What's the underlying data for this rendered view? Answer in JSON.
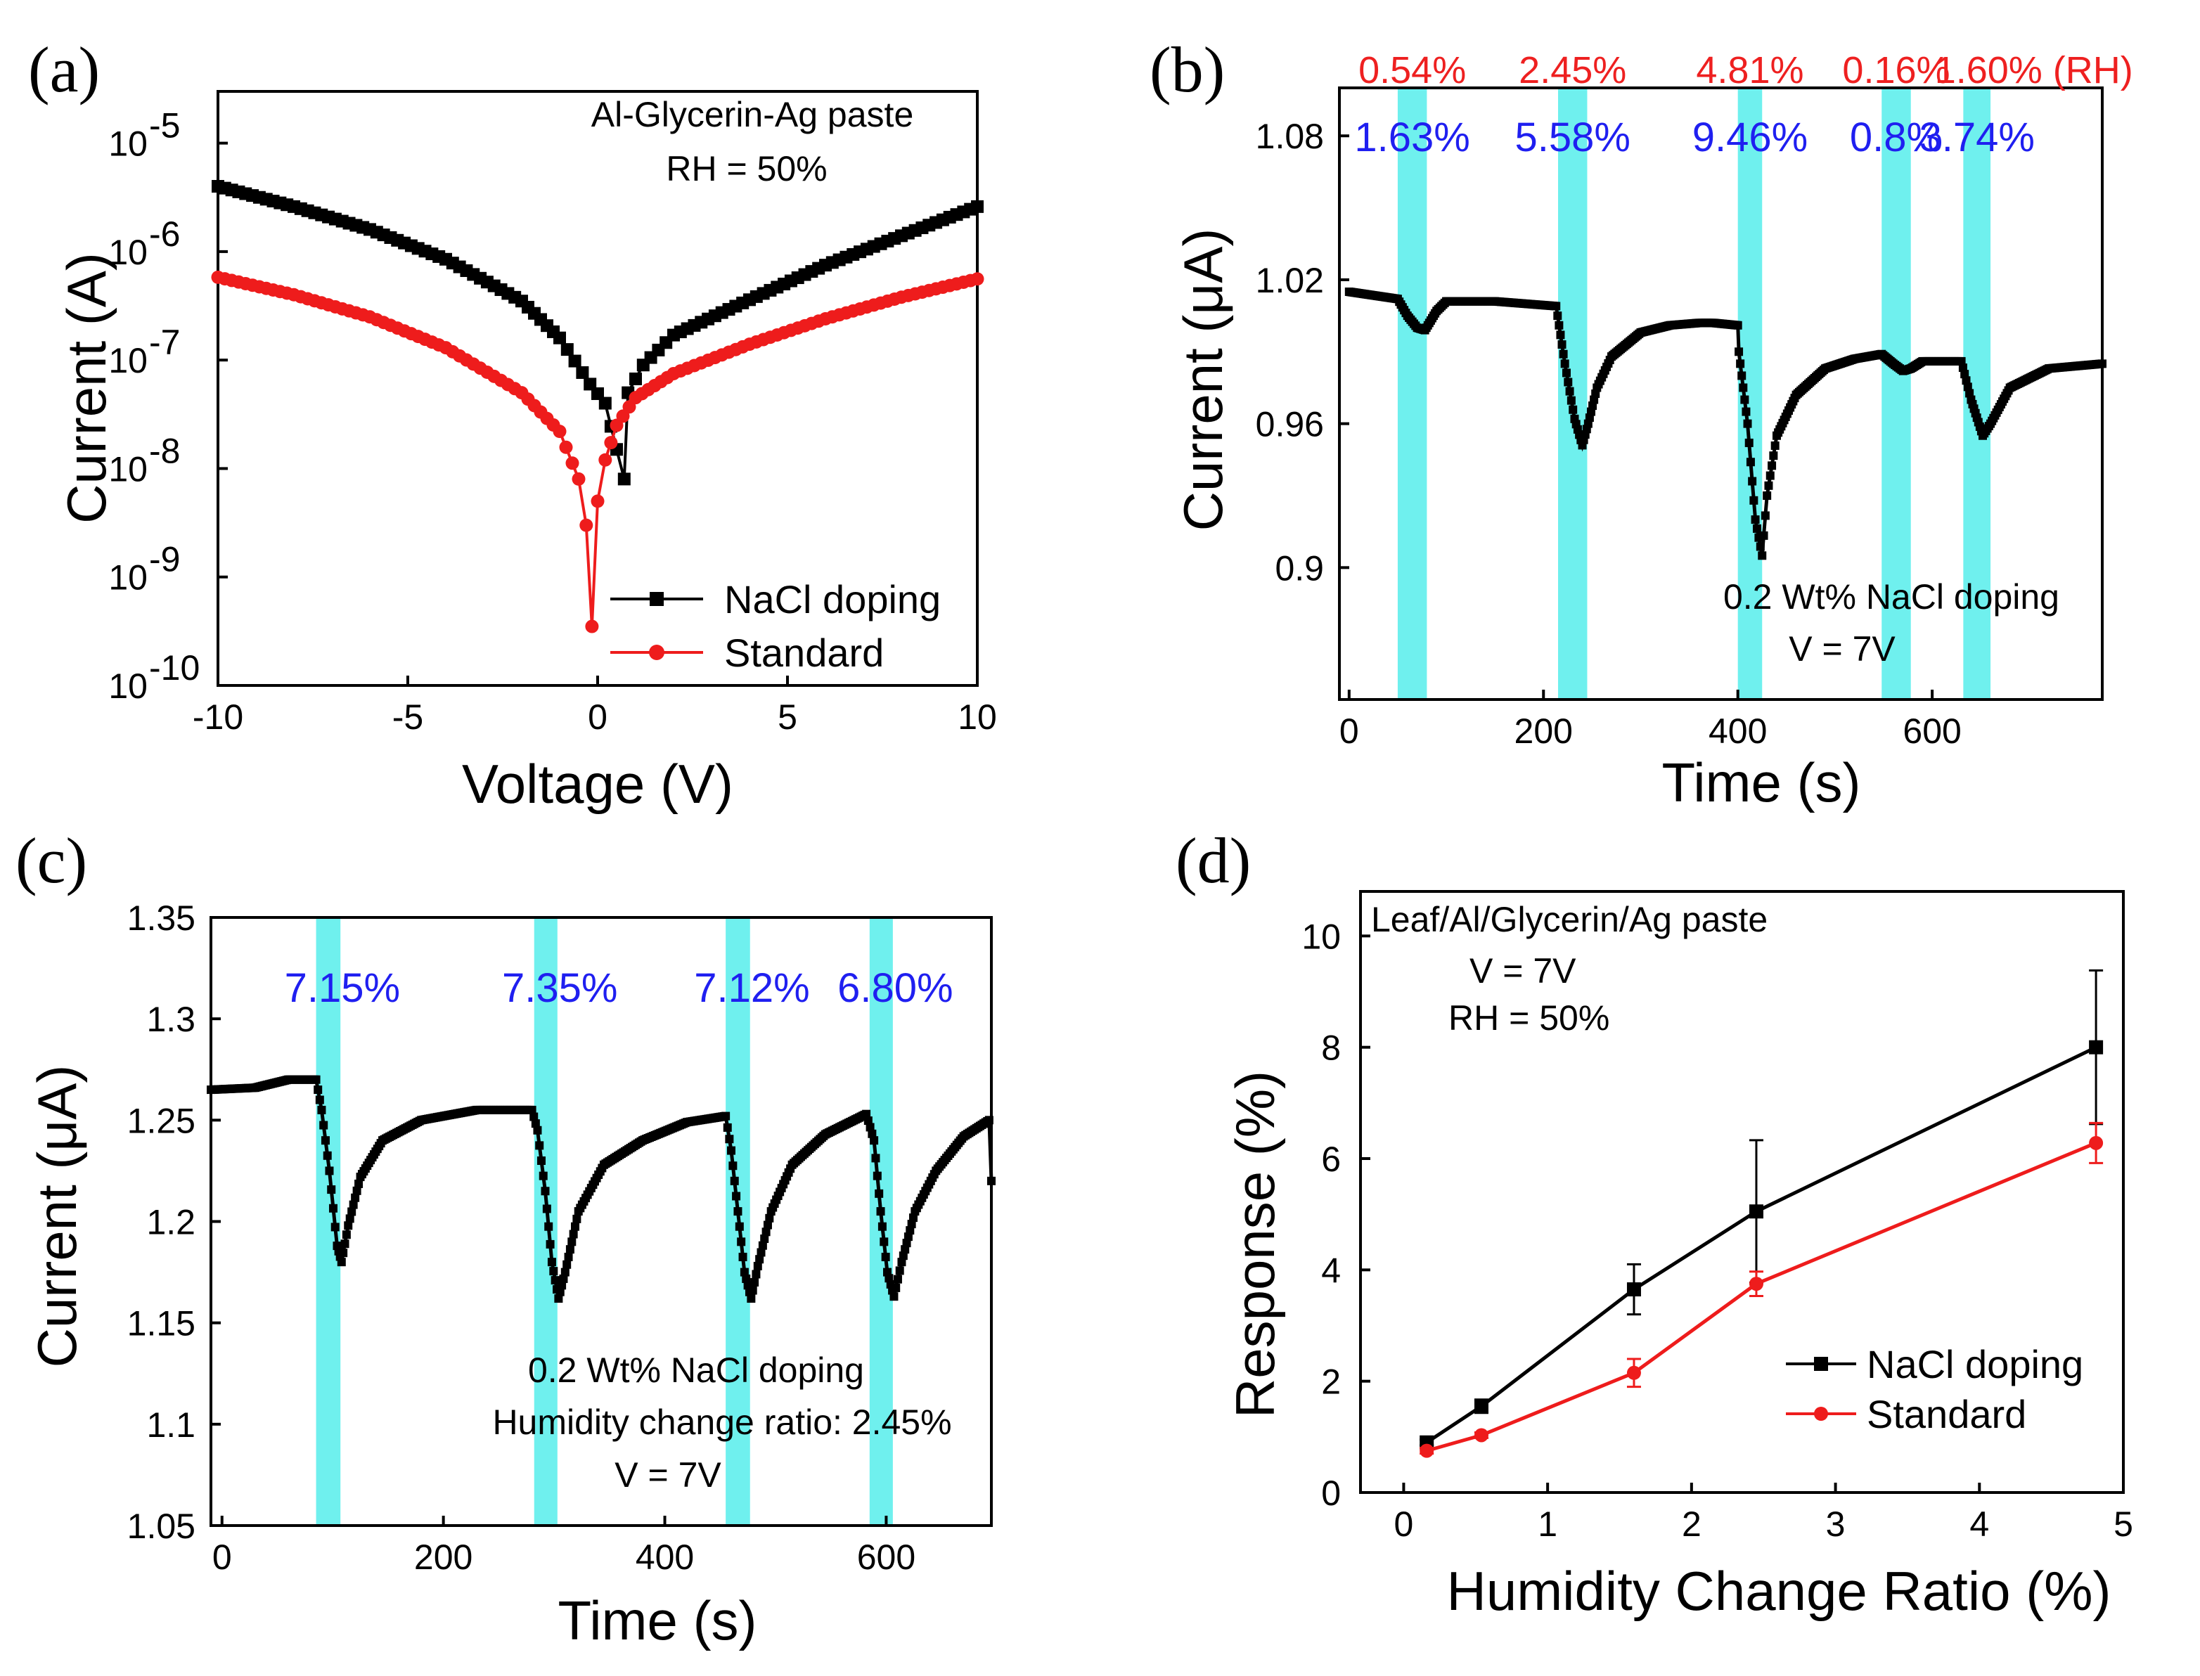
{
  "colors": {
    "black_series": "#000000",
    "red_series": "#ee1c1c",
    "band": "#6ff0ee",
    "blue_label": "#1f1ff0",
    "red_label": "#ee2020"
  },
  "chart_data": [
    {
      "panel": "(a)",
      "type": "line",
      "y_scale": "log",
      "xlabel": "Voltage (V)",
      "ylabel": "Current (A)",
      "xlim": [
        -10,
        10
      ],
      "ylim": [
        1e-10,
        3e-05
      ],
      "x_ticks": [
        "-10",
        "-5",
        "0",
        "5",
        "10"
      ],
      "y_ticks": [
        {
          "base": "10",
          "exp": "-10",
          "value": 1e-10
        },
        {
          "base": "10",
          "exp": "-9",
          "value": 1e-09
        },
        {
          "base": "10",
          "exp": "-8",
          "value": 1e-08
        },
        {
          "base": "10",
          "exp": "-7",
          "value": 1e-07
        },
        {
          "base": "10",
          "exp": "-6",
          "value": 1e-06
        },
        {
          "base": "10",
          "exp": "-5",
          "value": 1e-05
        }
      ],
      "annotations": [
        "Al-Glycerin-Ag paste",
        "RH = 50%"
      ],
      "legend": [
        "NaCl doping",
        "Standard"
      ],
      "series": [
        {
          "name": "NaCl doping",
          "color": "#000000",
          "points": [
            [
              -10,
              4e-06
            ],
            [
              -8,
              2.6e-06
            ],
            [
              -6,
              1.6e-06
            ],
            [
              -4,
              8.5e-07
            ],
            [
              -2,
              3.5e-07
            ],
            [
              -1,
              1.6e-07
            ],
            [
              -0.2,
              6e-08
            ],
            [
              0.2,
              4e-08
            ],
            [
              0.5,
              1.5e-08
            ],
            [
              0.7,
              8e-09
            ],
            [
              0.8,
              5e-08
            ],
            [
              1.2,
              9e-08
            ],
            [
              2,
              1.7e-07
            ],
            [
              4,
              3.6e-07
            ],
            [
              6,
              7.5e-07
            ],
            [
              8,
              1.4e-06
            ],
            [
              10,
              2.6e-06
            ]
          ]
        },
        {
          "name": "Standard",
          "color": "#ee1c1c",
          "points": [
            [
              -10,
              5.8e-07
            ],
            [
              -8,
              4e-07
            ],
            [
              -6,
              2.5e-07
            ],
            [
              -4,
              1.3e-07
            ],
            [
              -2,
              5e-08
            ],
            [
              -1,
              2.2e-08
            ],
            [
              -0.5,
              8e-09
            ],
            [
              -0.3,
              3e-09
            ],
            [
              -0.15,
              3.5e-10
            ],
            [
              0,
              5e-09
            ],
            [
              0.2,
              1.2e-08
            ],
            [
              0.5,
              2.5e-08
            ],
            [
              1,
              4.5e-08
            ],
            [
              2,
              7.5e-08
            ],
            [
              4,
              1.4e-07
            ],
            [
              6,
              2.4e-07
            ],
            [
              8,
              3.8e-07
            ],
            [
              10,
              5.6e-07
            ]
          ]
        }
      ]
    },
    {
      "panel": "(b)",
      "type": "line",
      "xlabel": "Time (s)",
      "ylabel": "Current (μA)",
      "xlim": [
        -10,
        775
      ],
      "ylim": [
        0.845,
        1.1
      ],
      "x_ticks": [
        "0",
        "200",
        "400",
        "600"
      ],
      "y_ticks": [
        "0.9",
        "0.96",
        "1.02",
        "1.08"
      ],
      "bands": [
        [
          50,
          80
        ],
        [
          215,
          245
        ],
        [
          400,
          425
        ],
        [
          548,
          578
        ],
        [
          632,
          660
        ]
      ],
      "response_labels": [
        "1.63%",
        "5.58%",
        "9.46%",
        "0.8%",
        "3.74%"
      ],
      "rh_labels": [
        "0.54%",
        "2.45%",
        "4.81%",
        "0.16%",
        "1.60% (RH)"
      ],
      "annotations": [
        "0.2 Wt% NaCl doping",
        "V = 7V"
      ],
      "series": [
        {
          "name": "current",
          "color": "#000000",
          "points": [
            [
              0,
              1.015
            ],
            [
              50,
              1.012
            ],
            [
              60,
              1.005
            ],
            [
              70,
              1.0
            ],
            [
              78,
              0.999
            ],
            [
              90,
              1.007
            ],
            [
              100,
              1.011
            ],
            [
              150,
              1.011
            ],
            [
              213,
              1.009
            ],
            [
              222,
              0.985
            ],
            [
              232,
              0.962
            ],
            [
              240,
              0.951
            ],
            [
              246,
              0.96
            ],
            [
              255,
              0.975
            ],
            [
              270,
              0.988
            ],
            [
              300,
              0.998
            ],
            [
              330,
              1.001
            ],
            [
              360,
              1.002
            ],
            [
              375,
              1.002
            ],
            [
              400,
              1.001
            ],
            [
              401,
              0.99
            ],
            [
              410,
              0.96
            ],
            [
              418,
              0.92
            ],
            [
              425,
              0.905
            ],
            [
              430,
              0.93
            ],
            [
              440,
              0.955
            ],
            [
              460,
              0.972
            ],
            [
              490,
              0.983
            ],
            [
              520,
              0.987
            ],
            [
              548,
              0.989
            ],
            [
              560,
              0.985
            ],
            [
              570,
              0.982
            ],
            [
              578,
              0.983
            ],
            [
              590,
              0.986
            ],
            [
              630,
              0.986
            ],
            [
              640,
              0.97
            ],
            [
              652,
              0.955
            ],
            [
              660,
              0.96
            ],
            [
              680,
              0.975
            ],
            [
              720,
              0.983
            ],
            [
              775,
              0.985
            ]
          ]
        }
      ]
    },
    {
      "panel": "(c)",
      "type": "line",
      "xlabel": "Time (s)",
      "ylabel": "Current (μA)",
      "xlim": [
        -10,
        695
      ],
      "ylim": [
        1.05,
        1.35
      ],
      "x_ticks": [
        "0",
        "200",
        "400",
        "600"
      ],
      "y_ticks": [
        "1.05",
        "1.1",
        "1.15",
        "1.2",
        "1.25",
        "1.3",
        "1.35"
      ],
      "bands": [
        [
          85,
          107
        ],
        [
          282,
          303
        ],
        [
          455,
          477
        ],
        [
          585,
          606
        ]
      ],
      "response_labels": [
        "7.15%",
        "7.35%",
        "7.12%",
        "6.80%"
      ],
      "annotations": [
        "0.2 Wt% NaCl doping",
        "Humidity change ratio: 2.45%",
        "V = 7V"
      ],
      "series": [
        {
          "name": "current",
          "color": "#000000",
          "points": [
            [
              -10,
              1.265
            ],
            [
              30,
              1.266
            ],
            [
              60,
              1.27
            ],
            [
              85,
              1.27
            ],
            [
              90,
              1.255
            ],
            [
              97,
              1.225
            ],
            [
              104,
              1.188
            ],
            [
              108,
              1.18
            ],
            [
              114,
              1.198
            ],
            [
              125,
              1.222
            ],
            [
              145,
              1.24
            ],
            [
              180,
              1.25
            ],
            [
              230,
              1.255
            ],
            [
              280,
              1.255
            ],
            [
              285,
              1.245
            ],
            [
              292,
              1.215
            ],
            [
              298,
              1.18
            ],
            [
              304,
              1.162
            ],
            [
              310,
              1.175
            ],
            [
              322,
              1.205
            ],
            [
              345,
              1.228
            ],
            [
              380,
              1.24
            ],
            [
              420,
              1.249
            ],
            [
              455,
              1.252
            ],
            [
              460,
              1.235
            ],
            [
              466,
              1.205
            ],
            [
              472,
              1.175
            ],
            [
              478,
              1.162
            ],
            [
              484,
              1.178
            ],
            [
              496,
              1.205
            ],
            [
              515,
              1.228
            ],
            [
              545,
              1.243
            ],
            [
              582,
              1.253
            ],
            [
              589,
              1.24
            ],
            [
              595,
              1.205
            ],
            [
              601,
              1.175
            ],
            [
              607,
              1.163
            ],
            [
              614,
              1.18
            ],
            [
              626,
              1.205
            ],
            [
              645,
              1.225
            ],
            [
              670,
              1.242
            ],
            [
              693,
              1.25
            ],
            [
              695,
              1.22
            ]
          ]
        }
      ]
    },
    {
      "panel": "(d)",
      "type": "line",
      "xlabel": "Humidity Change Ratio (%)",
      "ylabel": "Response (%)",
      "xlim": [
        -0.3,
        5
      ],
      "ylim": [
        0,
        10.8
      ],
      "x_ticks": [
        "0",
        "1",
        "2",
        "3",
        "4",
        "5"
      ],
      "y_ticks": [
        "0",
        "2",
        "4",
        "6",
        "8",
        "10"
      ],
      "annotations": [
        "Leaf/Al/Glycerin/Ag paste",
        "V = 7V",
        "RH = 50%"
      ],
      "legend": [
        "NaCl doping",
        "Standard"
      ],
      "series": [
        {
          "name": "NaCl doping",
          "color": "#000000",
          "x": [
            0.16,
            0.54,
            1.6,
            2.45,
            4.81
          ],
          "y": [
            0.9,
            1.55,
            3.65,
            5.05,
            8.0
          ],
          "err": [
            0.05,
            0.12,
            0.45,
            1.28,
            1.38
          ]
        },
        {
          "name": "Standard",
          "color": "#ee1c1c",
          "x": [
            0.16,
            0.54,
            1.6,
            2.45,
            4.81
          ],
          "y": [
            0.75,
            1.03,
            2.15,
            3.75,
            6.28
          ],
          "err": [
            0.05,
            0.05,
            0.25,
            0.22,
            0.36
          ]
        }
      ]
    }
  ]
}
